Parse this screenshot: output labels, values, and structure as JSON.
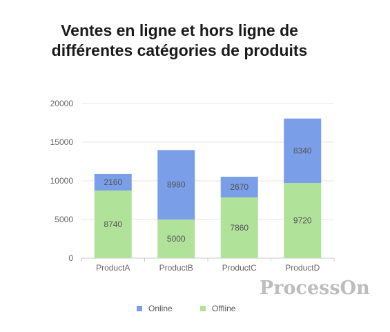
{
  "title": "Ventes en ligne et hors ligne de\ndifférentes catégories de produits",
  "watermark": "ProcessOn",
  "colors": {
    "online": "#7b9ee8",
    "offline": "#b0e29a",
    "grid": "#e6e6e6",
    "axis": "#cccccc",
    "tick": "#666666",
    "label": "#555555"
  },
  "chart_data": {
    "type": "bar",
    "stacked": true,
    "title": "Ventes en ligne et hors ligne de différentes catégories de produits",
    "categories": [
      "ProductA",
      "ProductB",
      "ProductC",
      "ProductD"
    ],
    "series": [
      {
        "name": "Offline",
        "values": [
          8740,
          5000,
          7860,
          9720
        ]
      },
      {
        "name": "Online",
        "values": [
          2160,
          8980,
          2670,
          8340
        ]
      }
    ],
    "ylim": [
      0,
      20000
    ],
    "yticks": [
      "0",
      "5000",
      "10000",
      "15000",
      "20000"
    ],
    "grid": true,
    "legend_position": "bottom-center",
    "legend": [
      "Online",
      "Offline"
    ]
  }
}
